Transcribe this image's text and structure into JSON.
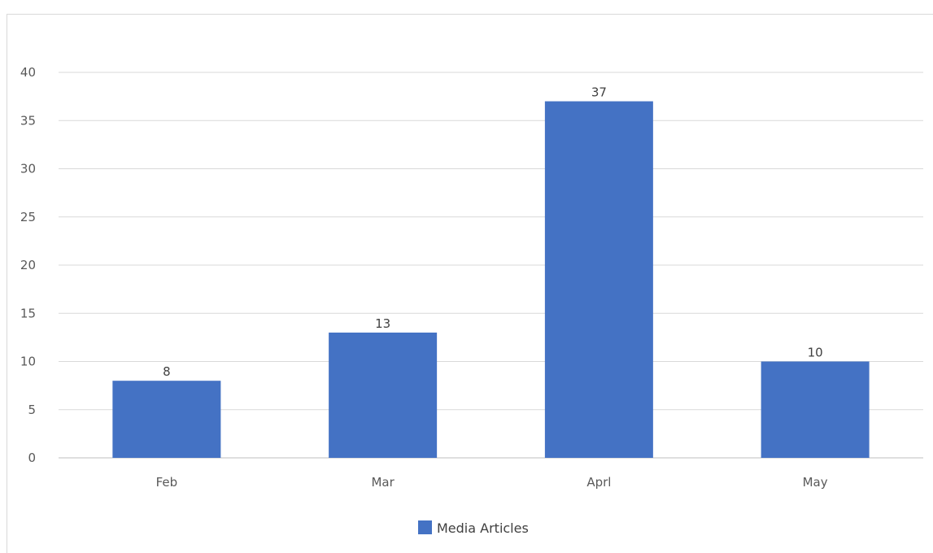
{
  "chart_data": {
    "type": "bar",
    "categories": [
      "Feb",
      "Mar",
      "Aprl",
      "May"
    ],
    "series": [
      {
        "name": "Media Articles",
        "values": [
          8,
          13,
          37,
          10
        ],
        "color": "#4472C4"
      }
    ],
    "title": "",
    "xlabel": "",
    "ylabel": "",
    "ylim": [
      0,
      40
    ],
    "yticks": [
      0,
      5,
      10,
      15,
      20,
      25,
      30,
      35,
      40
    ],
    "grid": true,
    "legend_position": "bottom",
    "data_labels": true
  }
}
